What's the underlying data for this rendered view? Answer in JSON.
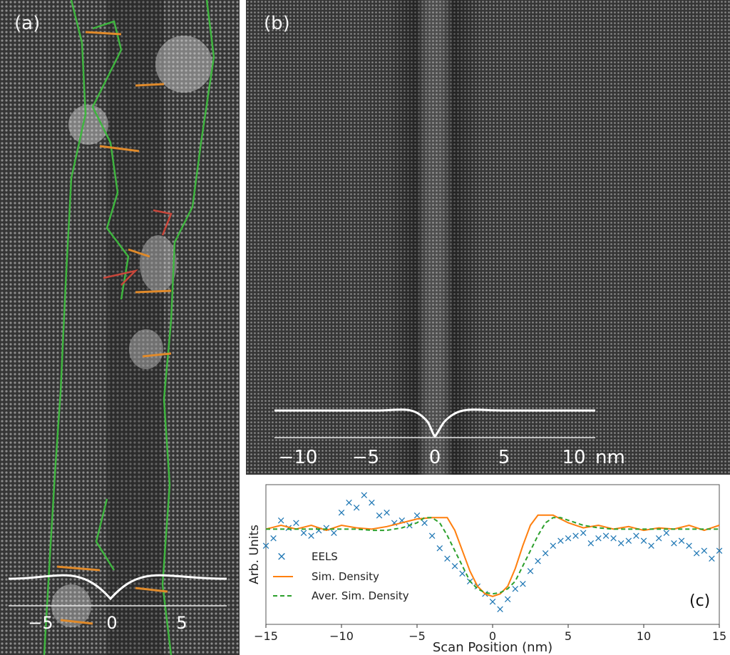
{
  "panels": {
    "a": {
      "label": "(a)",
      "ticks": [
        "−5",
        "0",
        "5"
      ]
    },
    "b": {
      "label": "(b)",
      "ticks": [
        "−10",
        "−5",
        "0",
        "5",
        "10"
      ],
      "unit": "nm"
    },
    "c": {
      "label": "(c)"
    }
  },
  "colors": {
    "lattice_bg": "#3a3a3a",
    "boundary_green": "#3fb53f",
    "boundary_orange": "#e08a2a",
    "boundary_red": "#c8473b",
    "eels_blue": "#1f77b4",
    "sim_orange": "#ff7f0e",
    "aver_green": "#2ca02c"
  },
  "chart_data": {
    "type": "line",
    "xlabel": "Scan Position (nm)",
    "ylabel": "Arb. Units",
    "xlim": [
      -15,
      15
    ],
    "ylim": [
      0,
      1.1
    ],
    "xticks": [
      "−15",
      "−10",
      "−5",
      "0",
      "5",
      "10",
      "15"
    ],
    "xtick_values": [
      -15,
      -10,
      -5,
      0,
      5,
      10,
      15
    ],
    "grid": false,
    "legend_position": "left",
    "series": [
      {
        "name": "EELS",
        "style": "x-markers",
        "x": [
          -15,
          -14.5,
          -14,
          -13.5,
          -13,
          -12.5,
          -12,
          -11.5,
          -11,
          -10.5,
          -10,
          -9.5,
          -9,
          -8.5,
          -8,
          -7.5,
          -7,
          -6.5,
          -6,
          -5.5,
          -5,
          -4.5,
          -4,
          -3.5,
          -3,
          -2.5,
          -2,
          -1.5,
          -1,
          -0.5,
          0,
          0.5,
          1,
          1.5,
          2,
          2.5,
          3,
          3.5,
          4,
          4.5,
          5,
          5.5,
          6,
          6.5,
          7,
          7.5,
          8,
          8.5,
          9,
          9.5,
          10,
          10.5,
          11,
          11.5,
          12,
          12.5,
          13,
          13.5,
          14,
          14.5,
          15
        ],
        "y": [
          0.62,
          0.68,
          0.82,
          0.76,
          0.8,
          0.72,
          0.7,
          0.74,
          0.76,
          0.72,
          0.88,
          0.96,
          0.92,
          1.02,
          0.96,
          0.86,
          0.88,
          0.8,
          0.82,
          0.78,
          0.86,
          0.8,
          0.7,
          0.6,
          0.52,
          0.46,
          0.4,
          0.34,
          0.3,
          0.24,
          0.18,
          0.12,
          0.2,
          0.28,
          0.32,
          0.42,
          0.5,
          0.56,
          0.62,
          0.66,
          0.68,
          0.7,
          0.72,
          0.64,
          0.68,
          0.7,
          0.68,
          0.64,
          0.66,
          0.7,
          0.66,
          0.62,
          0.68,
          0.72,
          0.64,
          0.66,
          0.62,
          0.56,
          0.58,
          0.52,
          0.58
        ]
      },
      {
        "name": "Sim. Density",
        "style": "solid",
        "x": [
          -15,
          -14,
          -13,
          -12,
          -11,
          -10,
          -9,
          -8,
          -7,
          -6,
          -5,
          -4,
          -3,
          -2.5,
          -2,
          -1.5,
          -1,
          -0.5,
          0,
          0.5,
          1,
          1.5,
          2,
          2.5,
          3,
          4,
          5,
          6,
          7,
          8,
          9,
          10,
          11,
          12,
          13,
          14,
          15
        ],
        "y": [
          0.75,
          0.78,
          0.75,
          0.78,
          0.74,
          0.78,
          0.76,
          0.75,
          0.77,
          0.8,
          0.83,
          0.84,
          0.84,
          0.74,
          0.58,
          0.42,
          0.3,
          0.24,
          0.22,
          0.24,
          0.3,
          0.44,
          0.62,
          0.78,
          0.86,
          0.86,
          0.8,
          0.76,
          0.78,
          0.75,
          0.77,
          0.74,
          0.76,
          0.75,
          0.78,
          0.74,
          0.78
        ]
      },
      {
        "name": "Aver. Sim. Density",
        "style": "dashed",
        "x": [
          -15,
          -14,
          -13,
          -12,
          -11,
          -10,
          -9,
          -8,
          -7,
          -6,
          -5,
          -4.5,
          -4,
          -3.5,
          -3,
          -2.5,
          -2,
          -1.5,
          -1,
          -0.5,
          0,
          0.5,
          1,
          1.5,
          2,
          2.5,
          3,
          3.5,
          4,
          4.5,
          5,
          6,
          7,
          8,
          9,
          10,
          11,
          12,
          13,
          14,
          15
        ],
        "y": [
          0.75,
          0.75,
          0.75,
          0.75,
          0.75,
          0.75,
          0.75,
          0.74,
          0.74,
          0.76,
          0.8,
          0.84,
          0.84,
          0.8,
          0.7,
          0.58,
          0.46,
          0.34,
          0.28,
          0.25,
          0.24,
          0.25,
          0.28,
          0.34,
          0.46,
          0.58,
          0.7,
          0.8,
          0.84,
          0.84,
          0.82,
          0.78,
          0.76,
          0.75,
          0.75,
          0.75,
          0.75,
          0.75,
          0.75,
          0.75,
          0.75
        ]
      }
    ]
  }
}
